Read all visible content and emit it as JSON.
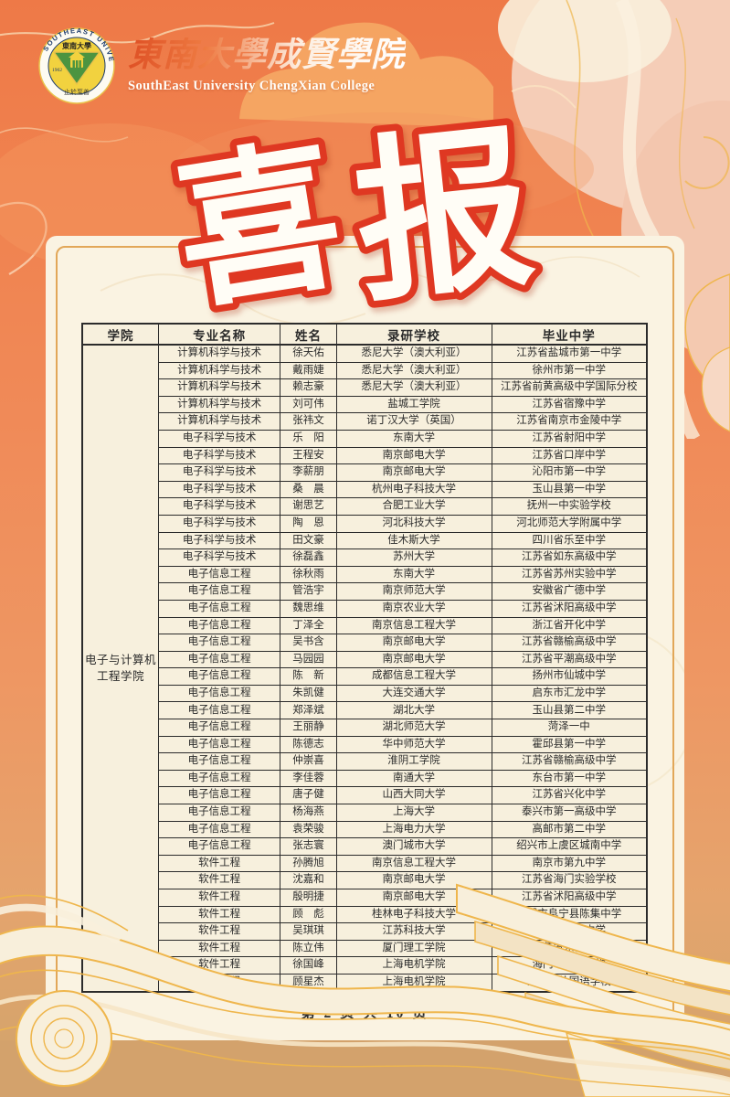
{
  "page": {
    "accent_red": "#DF3822",
    "accent_gold": "#EFB64C",
    "bg_orange": "#EF7A4C",
    "bg_tan": "#D3A26C",
    "panel_bg": "#FAF3E2",
    "ink": "#2B2B2B"
  },
  "header": {
    "logo": {
      "ring_text": "SOUTHEAST UNIVERSITY",
      "seal_text_zh": "東南大學",
      "year": "1902",
      "motto": "止於至善"
    },
    "college_name_zh": "東南大學成賢學院",
    "college_name_en": "SouthEast University ChengXian College"
  },
  "title": {
    "char1": "喜",
    "char2": "报"
  },
  "table": {
    "columns": [
      "学院",
      "专业名称",
      "姓名",
      "录研学校",
      "毕业中学"
    ],
    "college": {
      "line1": "电子与计算机",
      "line2": "工程学院"
    },
    "rows": [
      [
        "计算机科学与技术",
        "徐天佑",
        "悉尼大学（澳大利亚）",
        "江苏省盐城市第一中学"
      ],
      [
        "计算机科学与技术",
        "戴雨婕",
        "悉尼大学（澳大利亚）",
        "徐州市第一中学"
      ],
      [
        "计算机科学与技术",
        "赖志豪",
        "悉尼大学（澳大利亚）",
        "江苏省前黄高级中学国际分校"
      ],
      [
        "计算机科学与技术",
        "刘可伟",
        "盐城工学院",
        "江苏省宿豫中学"
      ],
      [
        "计算机科学与技术",
        "张祎文",
        "诺丁汉大学（英国）",
        "江苏省南京市金陵中学"
      ],
      [
        "电子科学与技术",
        "乐　阳",
        "东南大学",
        "江苏省射阳中学"
      ],
      [
        "电子科学与技术",
        "王程安",
        "南京邮电大学",
        "江苏省口岸中学"
      ],
      [
        "电子科学与技术",
        "李薪朋",
        "南京邮电大学",
        "沁阳市第一中学"
      ],
      [
        "电子科学与技术",
        "桑　晨",
        "杭州电子科技大学",
        "玉山县第一中学"
      ],
      [
        "电子科学与技术",
        "谢思艺",
        "合肥工业大学",
        "抚州一中实验学校"
      ],
      [
        "电子科学与技术",
        "陶　恩",
        "河北科技大学",
        "河北师范大学附属中学"
      ],
      [
        "电子科学与技术",
        "田文豪",
        "佳木斯大学",
        "四川省乐至中学"
      ],
      [
        "电子科学与技术",
        "徐磊鑫",
        "苏州大学",
        "江苏省如东高级中学"
      ],
      [
        "电子信息工程",
        "徐秋雨",
        "东南大学",
        "江苏省苏州实验中学"
      ],
      [
        "电子信息工程",
        "管浩宇",
        "南京师范大学",
        "安徽省广德中学"
      ],
      [
        "电子信息工程",
        "魏思维",
        "南京农业大学",
        "江苏省沭阳高级中学"
      ],
      [
        "电子信息工程",
        "丁泽全",
        "南京信息工程大学",
        "浙江省开化中学"
      ],
      [
        "电子信息工程",
        "吴书含",
        "南京邮电大学",
        "江苏省赣榆高级中学"
      ],
      [
        "电子信息工程",
        "马园园",
        "南京邮电大学",
        "江苏省平潮高级中学"
      ],
      [
        "电子信息工程",
        "陈　新",
        "成都信息工程大学",
        "扬州市仙城中学"
      ],
      [
        "电子信息工程",
        "朱凯健",
        "大连交通大学",
        "启东市汇龙中学"
      ],
      [
        "电子信息工程",
        "郑泽斌",
        "湖北大学",
        "玉山县第二中学"
      ],
      [
        "电子信息工程",
        "王丽静",
        "湖北师范大学",
        "菏泽一中"
      ],
      [
        "电子信息工程",
        "陈德志",
        "华中师范大学",
        "霍邱县第一中学"
      ],
      [
        "电子信息工程",
        "仲崇喜",
        "淮阴工学院",
        "江苏省赣榆高级中学"
      ],
      [
        "电子信息工程",
        "李佳蓉",
        "南通大学",
        "东台市第一中学"
      ],
      [
        "电子信息工程",
        "唐子健",
        "山西大同大学",
        "江苏省兴化中学"
      ],
      [
        "电子信息工程",
        "杨海燕",
        "上海大学",
        "泰兴市第一高级中学"
      ],
      [
        "电子信息工程",
        "袁荣骏",
        "上海电力大学",
        "高邮市第二中学"
      ],
      [
        "电子信息工程",
        "张志寰",
        "澳门城市大学",
        "绍兴市上虞区城南中学"
      ],
      [
        "软件工程",
        "孙腾旭",
        "南京信息工程大学",
        "南京市第九中学"
      ],
      [
        "软件工程",
        "沈嘉和",
        "南京邮电大学",
        "江苏省海门实验学校"
      ],
      [
        "软件工程",
        "殷明捷",
        "南京邮电大学",
        "江苏省沭阳高级中学"
      ],
      [
        "软件工程",
        "顾　彪",
        "桂林电子科技大学",
        "盐城市阜宁县陈集中学"
      ],
      [
        "软件工程",
        "吴琪琪",
        "江苏科技大学",
        "滨海县八滩中学"
      ],
      [
        "软件工程",
        "陈立伟",
        "厦门理工学院",
        "江苏省东台中学"
      ],
      [
        "软件工程",
        "徐国峰",
        "上海电机学院",
        "海门市第一中学"
      ],
      [
        "软件工程",
        "顾星杰",
        "上海电机学院",
        "江苏省外国语学校"
      ]
    ]
  },
  "footer": {
    "page_text": "第 2 页  共 10 页"
  }
}
